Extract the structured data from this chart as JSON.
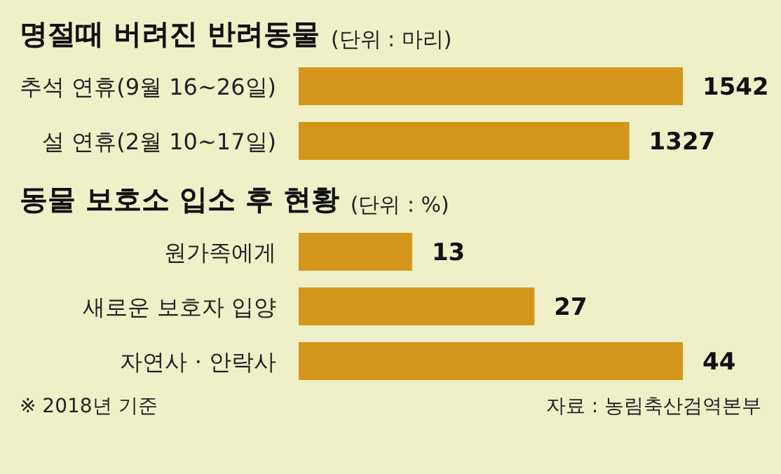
{
  "chart_data": [
    {
      "type": "bar",
      "orientation": "horizontal",
      "title": "명절때 버려진 반려동물",
      "subtitle": "(단위 : 마리)",
      "categories": [
        "추석 연휴(9월 16~26일)",
        "설 연휴(2월 10~17일)"
      ],
      "values": [
        1542,
        1327
      ],
      "color": "#d4961a",
      "data_labels": true
    },
    {
      "type": "bar",
      "orientation": "horizontal",
      "title": "동물 보호소 입소 후 현황",
      "subtitle": "(단위 : %)",
      "categories": [
        "원가족에게",
        "새로운 보호자 입양",
        "자연사 · 안락사"
      ],
      "values": [
        13,
        27,
        44
      ],
      "color": "#d4961a",
      "data_labels": true,
      "annotations": [
        "※ 2018년 기준",
        "자료 : 농림축산검역본부"
      ]
    }
  ]
}
